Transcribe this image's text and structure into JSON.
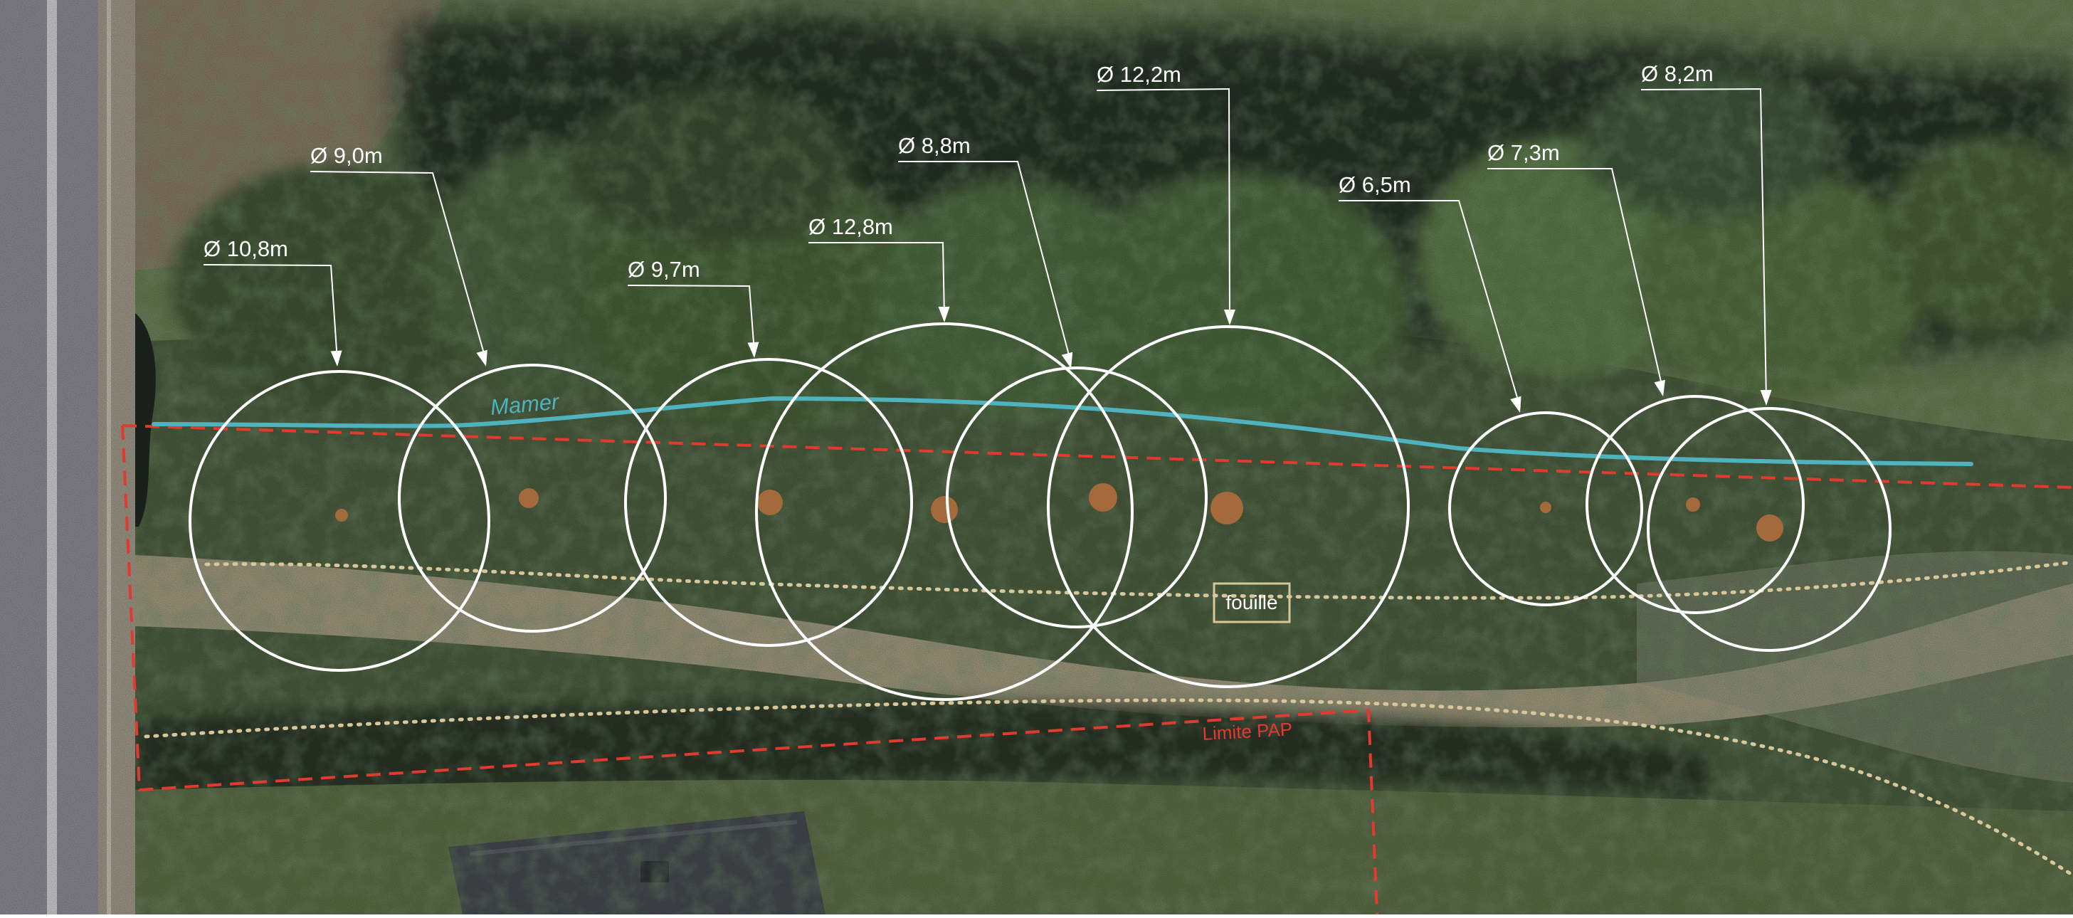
{
  "map": {
    "labels": {
      "river": "Mamer",
      "excavation": "fouille",
      "boundary": "Limite PAP"
    },
    "colors": {
      "canopy_outline": "#ffffff",
      "trunk": "#a46a3c",
      "river": "#4fb3bf",
      "pap_boundary": "#e23a2f",
      "excavation_line": "#d8c79a",
      "grass": "#3f5a36",
      "road": "#8d8d96",
      "path": "#b9ad95"
    },
    "trees": [
      {
        "id": "tree-1",
        "diameter_label": "Ø 10,8m",
        "diameter_m": 10.8
      },
      {
        "id": "tree-2",
        "diameter_label": "Ø 9,0m",
        "diameter_m": 9.0
      },
      {
        "id": "tree-3",
        "diameter_label": "Ø 9,7m",
        "diameter_m": 9.7
      },
      {
        "id": "tree-4",
        "diameter_label": "Ø 12,8m",
        "diameter_m": 12.8
      },
      {
        "id": "tree-5",
        "diameter_label": "Ø 8,8m",
        "diameter_m": 8.8
      },
      {
        "id": "tree-6",
        "diameter_label": "Ø 12,2m",
        "diameter_m": 12.2
      },
      {
        "id": "tree-7",
        "diameter_label": "Ø 6,5m",
        "diameter_m": 6.5
      },
      {
        "id": "tree-8",
        "diameter_label": "Ø 7,3m",
        "diameter_m": 7.3
      },
      {
        "id": "tree-9",
        "diameter_label": "Ø 8,2m",
        "diameter_m": 8.2
      }
    ]
  }
}
